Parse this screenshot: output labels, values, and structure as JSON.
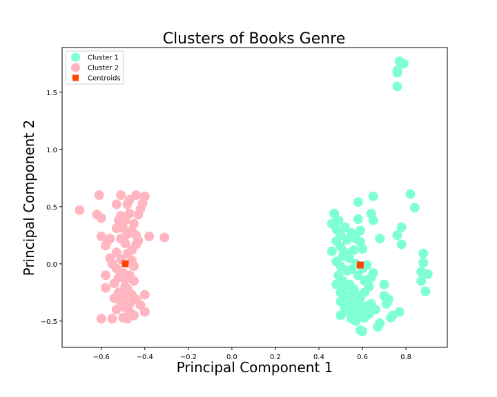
{
  "chart_data": {
    "type": "scatter",
    "title": "Clusters of Books Genre",
    "xlabel": "Principal Component 1",
    "ylabel": "Principal Component 2",
    "xlim": [
      -0.78,
      0.99
    ],
    "ylim": [
      -0.73,
      1.89
    ],
    "xticks": [
      -0.6,
      -0.4,
      -0.2,
      0.0,
      0.2,
      0.4,
      0.6,
      0.8
    ],
    "xtick_labels": [
      "−0.6",
      "−0.4",
      "−0.2",
      "0.0",
      "0.2",
      "0.4",
      "0.6",
      "0.8"
    ],
    "yticks": [
      -0.5,
      0.0,
      0.5,
      1.0,
      1.5
    ],
    "ytick_labels": [
      "−0.5",
      "0.0",
      "0.5",
      "1.0",
      "1.5"
    ],
    "grid": false,
    "legend_position": "upper-left",
    "series": [
      {
        "name": "Cluster 1",
        "color": "#7fffd4",
        "marker": "circle",
        "points": [
          [
            0.77,
            1.77
          ],
          [
            0.79,
            1.75
          ],
          [
            0.76,
            1.69
          ],
          [
            0.76,
            1.67
          ],
          [
            0.76,
            1.55
          ],
          [
            0.82,
            0.61
          ],
          [
            0.84,
            0.49
          ],
          [
            0.65,
            0.59
          ],
          [
            0.58,
            0.54
          ],
          [
            0.64,
            0.44
          ],
          [
            0.65,
            0.38
          ],
          [
            0.78,
            0.32
          ],
          [
            0.76,
            0.25
          ],
          [
            0.68,
            0.22
          ],
          [
            0.78,
            0.17
          ],
          [
            0.88,
            0.09
          ],
          [
            0.88,
            0.01
          ],
          [
            0.87,
            -0.07
          ],
          [
            0.9,
            -0.09
          ],
          [
            0.87,
            -0.15
          ],
          [
            0.89,
            -0.24
          ],
          [
            0.7,
            -0.18
          ],
          [
            0.72,
            -0.31
          ],
          [
            0.7,
            -0.28
          ],
          [
            0.71,
            -0.35
          ],
          [
            0.74,
            -0.45
          ],
          [
            0.73,
            -0.47
          ],
          [
            0.77,
            -0.42
          ],
          [
            0.68,
            -0.52
          ],
          [
            0.67,
            -0.55
          ],
          [
            0.65,
            -0.08
          ],
          [
            0.62,
            -0.14
          ],
          [
            0.64,
            -0.35
          ],
          [
            0.63,
            -0.44
          ],
          [
            0.61,
            -0.47
          ],
          [
            0.59,
            -0.58
          ],
          [
            0.6,
            -0.59
          ],
          [
            0.57,
            -0.5
          ],
          [
            0.56,
            -0.44
          ],
          [
            0.47,
            0.44
          ],
          [
            0.46,
            0.35
          ],
          [
            0.48,
            0.3
          ],
          [
            0.49,
            0.38
          ],
          [
            0.5,
            0.25
          ],
          [
            0.52,
            0.32
          ],
          [
            0.55,
            0.27
          ],
          [
            0.58,
            0.39
          ],
          [
            0.59,
            0.29
          ],
          [
            0.6,
            0.13
          ],
          [
            0.48,
            0.2
          ],
          [
            0.5,
            0.15
          ],
          [
            0.52,
            0.1
          ],
          [
            0.54,
            0.05
          ],
          [
            0.56,
            0.12
          ],
          [
            0.48,
            0.02
          ],
          [
            0.5,
            -0.02
          ],
          [
            0.51,
            0.07
          ],
          [
            0.53,
            -0.06
          ],
          [
            0.55,
            -0.05
          ],
          [
            0.57,
            0.0
          ],
          [
            0.58,
            -0.1
          ],
          [
            0.6,
            -0.04
          ],
          [
            0.62,
            -0.01
          ],
          [
            0.64,
            -0.12
          ],
          [
            0.49,
            -0.1
          ],
          [
            0.51,
            -0.15
          ],
          [
            0.52,
            -0.2
          ],
          [
            0.54,
            -0.18
          ],
          [
            0.56,
            -0.22
          ],
          [
            0.48,
            -0.18
          ],
          [
            0.5,
            -0.25
          ],
          [
            0.53,
            -0.28
          ],
          [
            0.55,
            -0.32
          ],
          [
            0.57,
            -0.27
          ],
          [
            0.59,
            -0.3
          ],
          [
            0.61,
            -0.25
          ],
          [
            0.63,
            -0.2
          ],
          [
            0.5,
            -0.33
          ],
          [
            0.52,
            -0.38
          ],
          [
            0.54,
            -0.36
          ],
          [
            0.56,
            -0.4
          ],
          [
            0.58,
            -0.35
          ],
          [
            0.6,
            -0.42
          ],
          [
            0.62,
            -0.37
          ],
          [
            0.5,
            -0.45
          ],
          [
            0.52,
            -0.42
          ],
          [
            0.55,
            -0.48
          ],
          [
            0.57,
            -0.45
          ],
          [
            0.66,
            -0.4
          ],
          [
            0.59,
            0.19
          ],
          [
            0.57,
            0.22
          ],
          [
            0.53,
            0.21
          ],
          [
            0.46,
            0.11
          ],
          [
            0.61,
            -0.15
          ]
        ]
      },
      {
        "name": "Cluster 2",
        "color": "#ffb6c1",
        "marker": "circle",
        "points": [
          [
            -0.7,
            0.47
          ],
          [
            -0.62,
            0.43
          ],
          [
            -0.6,
            0.4
          ],
          [
            -0.61,
            0.6
          ],
          [
            -0.44,
            0.6
          ],
          [
            -0.4,
            0.59
          ],
          [
            -0.51,
            0.6
          ],
          [
            -0.53,
            0.52
          ],
          [
            -0.47,
            0.56
          ],
          [
            -0.41,
            0.53
          ],
          [
            -0.43,
            0.43
          ],
          [
            -0.42,
            0.48
          ],
          [
            -0.31,
            0.23
          ],
          [
            -0.38,
            0.24
          ],
          [
            -0.6,
            0.24
          ],
          [
            -0.53,
            0.31
          ],
          [
            -0.57,
            0.2
          ],
          [
            -0.58,
            0.16
          ],
          [
            -0.53,
            0.1
          ],
          [
            -0.56,
            0.22
          ],
          [
            -0.51,
            0.42
          ],
          [
            -0.49,
            0.38
          ],
          [
            -0.47,
            0.44
          ],
          [
            -0.45,
            0.35
          ],
          [
            -0.5,
            0.31
          ],
          [
            -0.48,
            0.26
          ],
          [
            -0.46,
            0.29
          ],
          [
            -0.43,
            0.2
          ],
          [
            -0.44,
            0.17
          ],
          [
            -0.49,
            0.18
          ],
          [
            -0.51,
            0.22
          ],
          [
            -0.55,
            0.0
          ],
          [
            -0.53,
            -0.04
          ],
          [
            -0.51,
            0.04
          ],
          [
            -0.48,
            0.09
          ],
          [
            -0.46,
            0.03
          ],
          [
            -0.45,
            -0.02
          ],
          [
            -0.5,
            -0.08
          ],
          [
            -0.52,
            -0.12
          ],
          [
            -0.58,
            -0.1
          ],
          [
            -0.58,
            -0.21
          ],
          [
            -0.54,
            -0.17
          ],
          [
            -0.49,
            -0.14
          ],
          [
            -0.47,
            -0.1
          ],
          [
            -0.45,
            -0.15
          ],
          [
            -0.52,
            -0.25
          ],
          [
            -0.5,
            -0.29
          ],
          [
            -0.48,
            -0.22
          ],
          [
            -0.46,
            -0.27
          ],
          [
            -0.44,
            -0.31
          ],
          [
            -0.4,
            -0.27
          ],
          [
            -0.42,
            -0.36
          ],
          [
            -0.51,
            -0.34
          ],
          [
            -0.49,
            -0.38
          ],
          [
            -0.47,
            -0.42
          ],
          [
            -0.45,
            -0.45
          ],
          [
            -0.53,
            -0.4
          ],
          [
            -0.55,
            -0.48
          ],
          [
            -0.6,
            -0.48
          ],
          [
            -0.5,
            -0.47
          ],
          [
            -0.48,
            -0.48
          ],
          [
            -0.4,
            -0.42
          ],
          [
            -0.46,
            0.12
          ],
          [
            -0.44,
            0.25
          ],
          [
            -0.52,
            0.38
          ],
          [
            -0.48,
            0.52
          ],
          [
            -0.56,
            0.05
          ],
          [
            -0.54,
            -0.3
          ],
          [
            -0.49,
            -0.2
          ],
          [
            -0.47,
            -0.35
          ]
        ]
      },
      {
        "name": "Centroids",
        "color": "#ff4500",
        "marker": "square",
        "points": [
          [
            -0.49,
            0.0
          ],
          [
            0.59,
            -0.01
          ]
        ]
      }
    ]
  }
}
